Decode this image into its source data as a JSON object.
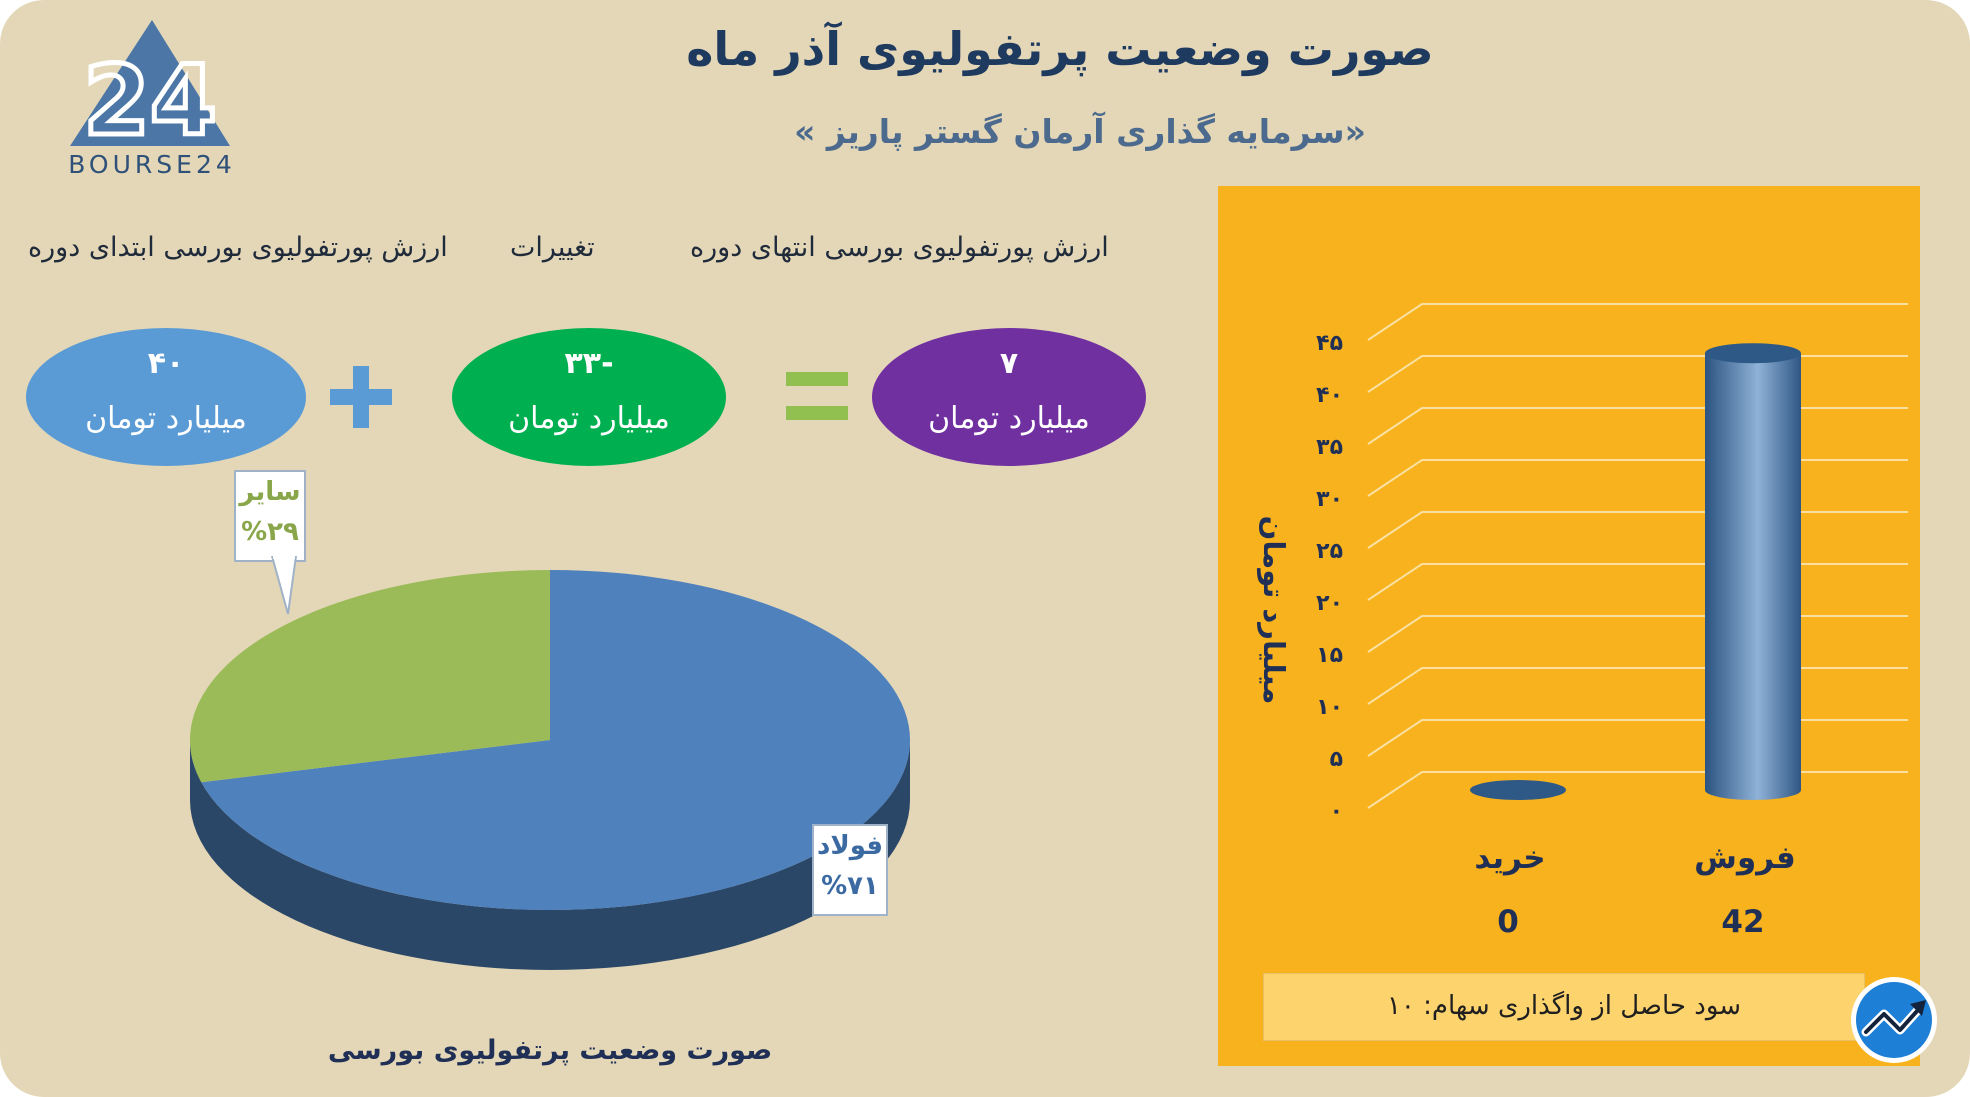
{
  "header": {
    "title": "صورت وضعیت پرتفولیوی آذر ماه",
    "subtitle": "«سرمایه گذاری آرمان گستر پاریز »",
    "logo_text": "BOURSE24"
  },
  "equation": {
    "labels": {
      "end": "ارزش پورتفولیوی بورسی انتهای دوره",
      "change": "تغییرات",
      "start": "ارزش پورتفولیوی بورسی ابتدای دوره"
    },
    "end_value": "۷",
    "change_value": "-۳۳",
    "start_value": "۴۰",
    "unit": "میلیارد تومان",
    "colors": {
      "end": "#7030a0",
      "change": "#00b050",
      "start": "#5b9bd5",
      "plus": "#5b9bd5",
      "equals": "#92c050"
    }
  },
  "pie": {
    "caption": "صورت وضعیت پرتفولیوی بورسی",
    "slices": [
      {
        "name": "فولاد",
        "label": "%۷۱",
        "value": 71,
        "color": "#4f81bd"
      },
      {
        "name": "سایر",
        "label": "%۲۹",
        "value": 29,
        "color": "#9bbb59"
      }
    ]
  },
  "bar": {
    "ylabel": "میلیارد تومان",
    "ticks": [
      "۰",
      "۵",
      "۱۰",
      "۱۵",
      "۲۰",
      "۲۵",
      "۳۰",
      "۳۵",
      "۴۰",
      "۴۵"
    ],
    "ylim": [
      0,
      45
    ],
    "profit_text": "سود حاصل از واگذاری سهام: ۱۰"
  },
  "chart_data": [
    {
      "type": "bar",
      "categories": [
        "خرید",
        "فروش"
      ],
      "values": [
        0,
        42
      ],
      "value_labels": [
        "0",
        "42"
      ],
      "ylabel": "میلیارد تومان",
      "ylim": [
        0,
        45
      ],
      "grid": true,
      "color": "#4a78a9"
    },
    {
      "type": "pie",
      "title": "صورت وضعیت پرتفولیوی بورسی",
      "labels": [
        "فولاد",
        "سایر"
      ],
      "values": [
        71,
        29
      ],
      "colors": [
        "#4f81bd",
        "#9bbb59"
      ]
    }
  ]
}
